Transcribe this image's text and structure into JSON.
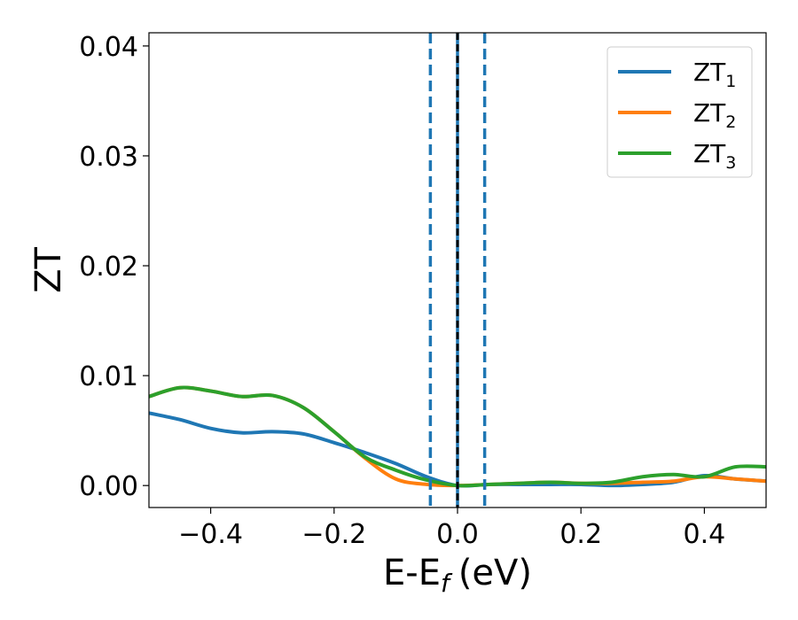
{
  "chart_data": {
    "type": "line",
    "xlabel": "E-E",
    "xlabel_sub": "f",
    "xlabel_unit": "(eV)",
    "ylabel": "ZT",
    "xlim": [
      -0.5,
      0.5
    ],
    "ylim": [
      -0.002,
      0.0412
    ],
    "xticks": [
      -0.4,
      -0.2,
      0.0,
      0.2,
      0.4
    ],
    "xtick_labels": [
      "−0.4",
      "−0.2",
      "0.0",
      "0.2",
      "0.4"
    ],
    "yticks": [
      0.0,
      0.01,
      0.02,
      0.03,
      0.04
    ],
    "ytick_labels": [
      "0.00",
      "0.01",
      "0.02",
      "0.03",
      "0.04"
    ],
    "grid": false,
    "legend_position": "top-right",
    "vlines": [
      {
        "x": -0.044,
        "style": "dashed",
        "color": "#1f77b4"
      },
      {
        "x": 0.0,
        "style": "solid",
        "color": "#1f77b4"
      },
      {
        "x": 0.0,
        "style": "dashed",
        "color": "#000000"
      },
      {
        "x": 0.044,
        "style": "dashed",
        "color": "#1f77b4"
      }
    ],
    "series": [
      {
        "name": "ZT",
        "subscript": "1",
        "color": "#1f77b4",
        "x": [
          -0.5,
          -0.45,
          -0.4,
          -0.35,
          -0.3,
          -0.25,
          -0.2,
          -0.15,
          -0.1,
          -0.05,
          0.0,
          0.05,
          0.1,
          0.15,
          0.2,
          0.25,
          0.3,
          0.35,
          0.4,
          0.45,
          0.5
        ],
        "y": [
          0.0066,
          0.006,
          0.0052,
          0.0048,
          0.0049,
          0.0047,
          0.0039,
          0.003,
          0.002,
          0.0008,
          0.0,
          0.0001,
          0.0001,
          0.0001,
          0.0001,
          0.0,
          0.0001,
          0.0003,
          0.0009,
          0.0006,
          0.0004
        ]
      },
      {
        "name": "ZT",
        "subscript": "2",
        "color": "#ff7f0e",
        "x": [
          -0.5,
          -0.45,
          -0.4,
          -0.35,
          -0.3,
          -0.25,
          -0.2,
          -0.15,
          -0.1,
          -0.05,
          0.0,
          0.05,
          0.1,
          0.15,
          0.2,
          0.25,
          0.3,
          0.35,
          0.4,
          0.45,
          0.5
        ],
        "y": [
          0.0081,
          0.0089,
          0.0086,
          0.0081,
          0.0082,
          0.0071,
          0.0049,
          0.0025,
          0.0006,
          0.0001,
          0.0,
          0.0001,
          0.0002,
          0.0003,
          0.0002,
          0.0002,
          0.0003,
          0.0004,
          0.0008,
          0.0006,
          0.0004
        ]
      },
      {
        "name": "ZT",
        "subscript": "3",
        "color": "#2ca02c",
        "x": [
          -0.5,
          -0.45,
          -0.4,
          -0.35,
          -0.3,
          -0.25,
          -0.2,
          -0.15,
          -0.1,
          -0.05,
          0.0,
          0.05,
          0.1,
          0.15,
          0.2,
          0.25,
          0.3,
          0.35,
          0.4,
          0.45,
          0.5
        ],
        "y": [
          0.0081,
          0.0089,
          0.0086,
          0.0081,
          0.0082,
          0.0071,
          0.0049,
          0.0026,
          0.0014,
          0.0005,
          0.0,
          0.0001,
          0.0002,
          0.0003,
          0.0002,
          0.0003,
          0.0008,
          0.001,
          0.0008,
          0.0017,
          0.0017
        ]
      }
    ]
  }
}
